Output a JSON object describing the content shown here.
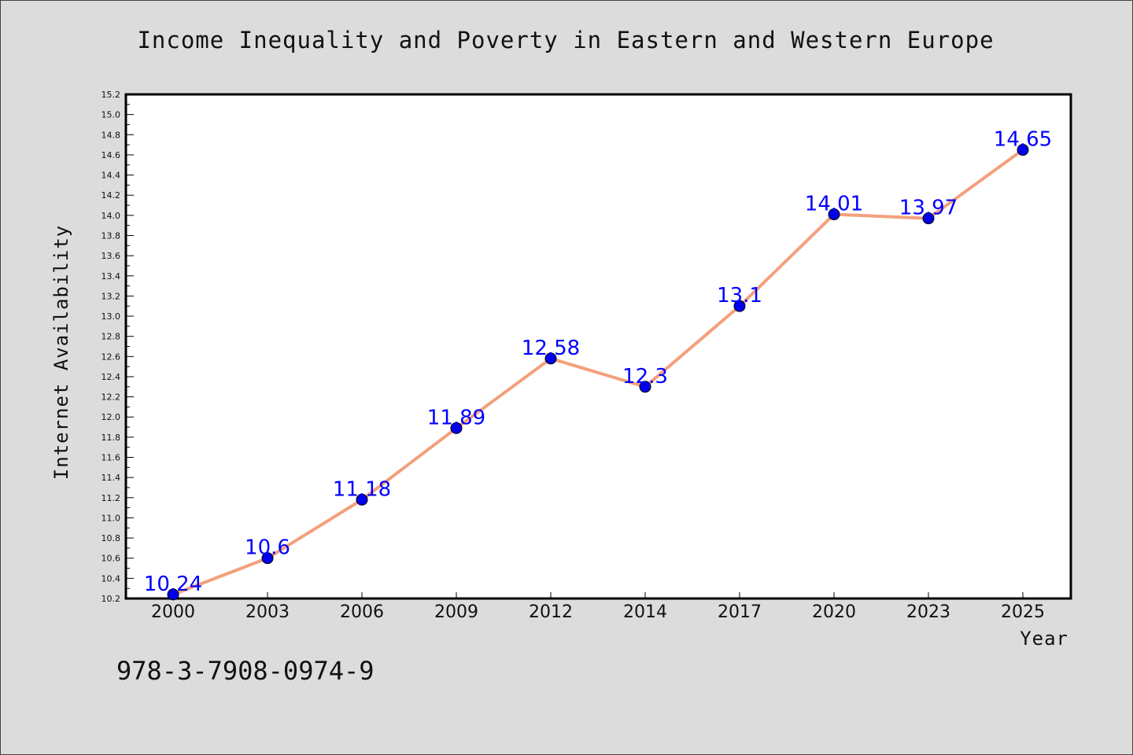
{
  "chart_data": {
    "type": "line",
    "title": "Income Inequality and Poverty in Eastern and Western Europe",
    "xlabel": "Year",
    "ylabel": "Internet Availability",
    "ylim": [
      10.2,
      15.2
    ],
    "yticks": [
      "10.2",
      "10.4",
      "10.6",
      "10.8",
      "11.0",
      "11.2",
      "11.4",
      "11.6",
      "11.8",
      "12.0",
      "12.2",
      "12.4",
      "12.6",
      "12.8",
      "13.0",
      "13.2",
      "13.4",
      "13.6",
      "13.8",
      "14.0",
      "14.2",
      "14.4",
      "14.6",
      "14.8",
      "15.0",
      "15.2"
    ],
    "categories": [
      "2000",
      "2003",
      "2006",
      "2009",
      "2012",
      "2014",
      "2017",
      "2020",
      "2023",
      "2025"
    ],
    "series": [
      {
        "values": [
          10.24,
          10.6,
          11.18,
          11.89,
          12.58,
          12.3,
          13.1,
          14.01,
          13.97,
          14.65
        ],
        "labels": [
          "10.24",
          "10.6",
          "11.18",
          "11.89",
          "12.58",
          "12.3",
          "13.1",
          "14.01",
          "13.97",
          "14.65"
        ],
        "line_color": "#f4a07c",
        "marker_color": "#0000ee"
      }
    ],
    "grid": false,
    "legend": "none",
    "plot_background": "#ffffff"
  },
  "footer": {
    "isbn": "978-3-7908-0974-9"
  }
}
